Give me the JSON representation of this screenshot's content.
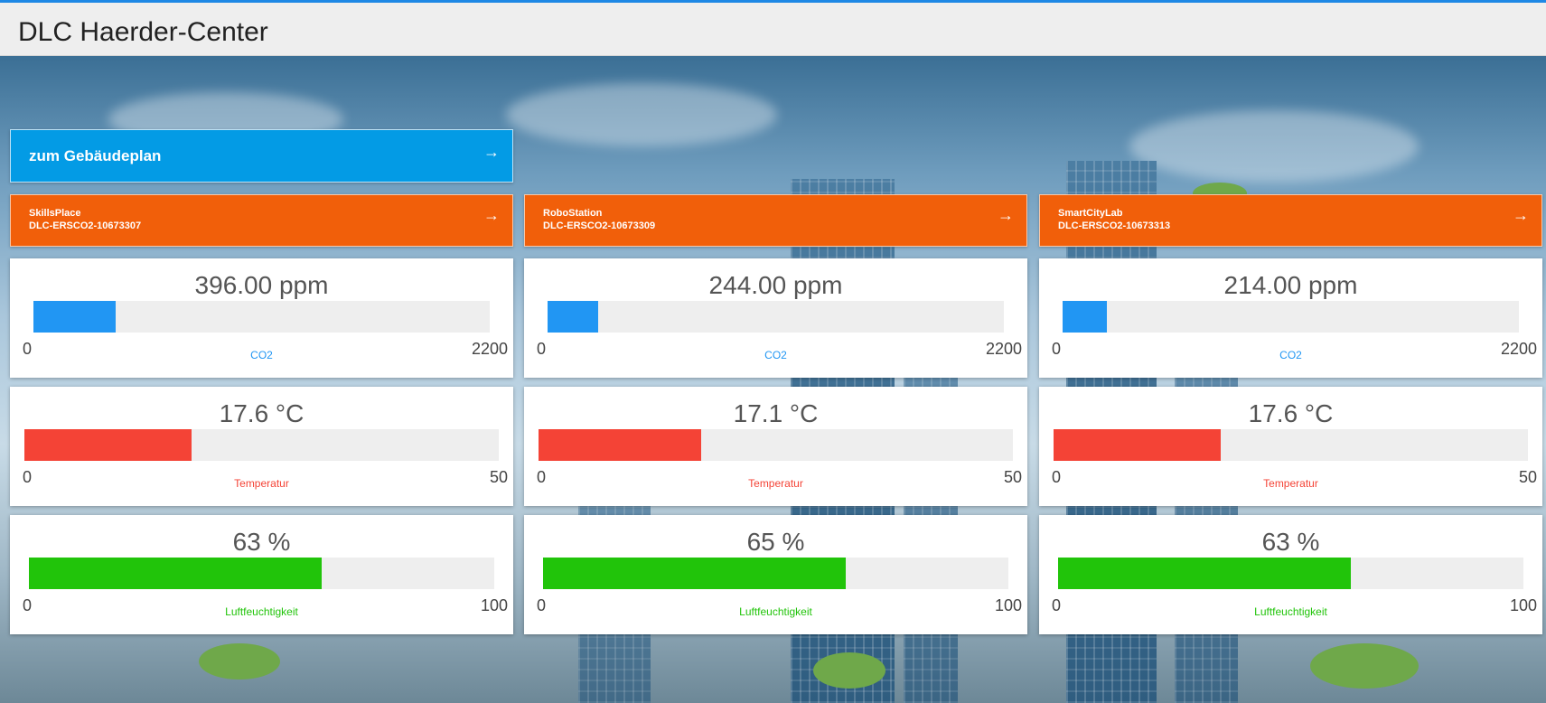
{
  "header": {
    "title": "DLC Haerder-Center"
  },
  "nav": {
    "label": "zum Gebäudeplan",
    "icon": "arrow-right-icon"
  },
  "colors": {
    "co2": "#2196f3",
    "temperature": "#f44336",
    "humidity": "#21c40a"
  },
  "rooms": [
    {
      "name": "SkillsPlace",
      "device": "DLC-ERSCO2-10673307",
      "co2": {
        "display": "396.00 ppm",
        "value": 396,
        "min": "0",
        "max": "2200",
        "label": "CO2"
      },
      "temp": {
        "display": "17.6 °C",
        "value": 17.6,
        "min": "0",
        "max": "50",
        "label": "Temperatur"
      },
      "hum": {
        "display": "63 %",
        "value": 63,
        "min": "0",
        "max": "100",
        "label": "Luftfeuchtigkeit"
      }
    },
    {
      "name": "RoboStation",
      "device": "DLC-ERSCO2-10673309",
      "co2": {
        "display": "244.00 ppm",
        "value": 244,
        "min": "0",
        "max": "2200",
        "label": "CO2"
      },
      "temp": {
        "display": "17.1 °C",
        "value": 17.1,
        "min": "0",
        "max": "50",
        "label": "Temperatur"
      },
      "hum": {
        "display": "65 %",
        "value": 65,
        "min": "0",
        "max": "100",
        "label": "Luftfeuchtigkeit"
      }
    },
    {
      "name": "SmartCityLab",
      "device": "DLC-ERSCO2-10673313",
      "co2": {
        "display": "214.00 ppm",
        "value": 214,
        "min": "0",
        "max": "2200",
        "label": "CO2"
      },
      "temp": {
        "display": "17.6 °C",
        "value": 17.6,
        "min": "0",
        "max": "50",
        "label": "Temperatur"
      },
      "hum": {
        "display": "63 %",
        "value": 63,
        "min": "0",
        "max": "100",
        "label": "Luftfeuchtigkeit"
      }
    }
  ]
}
